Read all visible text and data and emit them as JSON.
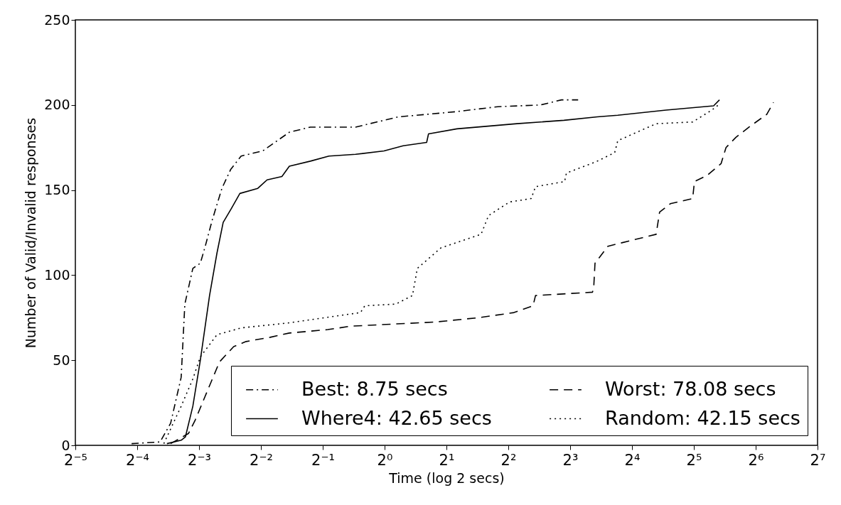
{
  "chart_data": {
    "type": "line",
    "xlabel": "Time (log 2 secs)",
    "ylabel": "Number of Valid/Invalid responses",
    "log": "x",
    "grid": false,
    "legend": "bottom right",
    "marker": "none",
    "xlim": [
      0.03125,
      128
    ],
    "ylim": [
      0,
      250
    ],
    "yticks": [
      0,
      50,
      100,
      150,
      200,
      250
    ],
    "xticks": [
      {
        "value": 0.03125,
        "label": "2⁻⁵"
      },
      {
        "value": 0.0625,
        "label": "2⁻⁴"
      },
      {
        "value": 0.125,
        "label": "2⁻³"
      },
      {
        "value": 0.25,
        "label": "2⁻²"
      },
      {
        "value": 0.5,
        "label": "2⁻¹"
      },
      {
        "value": 1,
        "label": "2⁰"
      },
      {
        "value": 2,
        "label": "2¹"
      },
      {
        "value": 4,
        "label": "2²"
      },
      {
        "value": 8,
        "label": "2³"
      },
      {
        "value": 16,
        "label": "2⁴"
      },
      {
        "value": 32,
        "label": "2⁵"
      },
      {
        "value": 64,
        "label": "2⁶"
      },
      {
        "value": 128,
        "label": "2⁷"
      }
    ],
    "series": [
      {
        "name": "Best: 8.75 secs",
        "color": "#000000",
        "line_style": "dashdot",
        "x": [
          0.0587,
          0.0808,
          0.0909,
          0.1023,
          0.1066,
          0.1166,
          0.1268,
          0.134,
          0.1446,
          0.1615,
          0.178,
          0.2003,
          0.2552,
          0.3439,
          0.4353,
          0.7221,
          1.1647,
          2.2038,
          3.5554,
          5.7358,
          7.2602,
          8.75
        ],
        "values": [
          1,
          2,
          13,
          40,
          83,
          104,
          107,
          117,
          132,
          151,
          162,
          170,
          173,
          184,
          187,
          187,
          193,
          196,
          199,
          200,
          203,
          203
        ]
      },
      {
        "name": "Where4: 42.65 secs",
        "color": "#000000",
        "line_style": "solid",
        "x": [
          0.0872,
          0.1023,
          0.1073,
          0.1166,
          0.1268,
          0.1406,
          0.1528,
          0.1638,
          0.1793,
          0.1975,
          0.2415,
          0.2679,
          0.3164,
          0.3439,
          0.4353,
          0.5359,
          0.7221,
          0.9931,
          1.2311,
          1.6021,
          1.6358,
          2.2501,
          4.4076,
          7.4643,
          10.853,
          13.64,
          23.43,
          39.95,
          42.65
        ],
        "values": [
          1,
          3,
          5,
          23,
          50,
          88,
          113,
          131,
          139,
          148,
          151,
          156,
          158,
          164,
          167,
          170,
          171,
          173,
          176,
          178,
          183,
          186,
          189,
          191,
          193,
          194,
          197,
          199.5,
          203
        ]
      },
      {
        "name": "Worst: 78.08 secs",
        "color": "#000000",
        "line_style": "dashed",
        "x": [
          0.0909,
          0.1111,
          0.1199,
          0.1571,
          0.1843,
          0.2117,
          0.2774,
          0.3439,
          0.5285,
          0.683,
          1.7777,
          2.8679,
          4.2574,
          5.278,
          5.4264,
          10.267,
          10.411,
          10.57,
          12.21,
          20.97,
          21.8,
          24.59,
          31.57,
          32.22,
          37.01,
          43.41,
          45.89,
          51.27,
          60.13,
          72.5,
          78.08
        ],
        "values": [
          1,
          7,
          15,
          49,
          58,
          61,
          63.5,
          66,
          68,
          70,
          72.5,
          75,
          78,
          82,
          88,
          90,
          92,
          107,
          117,
          124,
          137,
          142,
          145,
          155,
          158.5,
          165.5,
          175,
          181,
          187.5,
          194.5,
          201.5
        ]
      },
      {
        "name": "Random: 42.15 secs",
        "color": "#000000",
        "line_style": "dotted",
        "x": [
          0.0842,
          0.1023,
          0.1166,
          0.1268,
          0.1528,
          0.2003,
          0.3439,
          0.5105,
          0.7631,
          0.8011,
          1.1329,
          1.366,
          1.4439,
          1.879,
          2.9485,
          3.2043,
          4.0558,
          5.1694,
          5.4264,
          7.5162,
          7.6741,
          10.63,
          13.18,
          13.64,
          20.97,
          31.57,
          39.12,
          42.15
        ],
        "values": [
          1,
          23,
          39,
          52,
          65,
          69,
          72,
          75,
          78,
          82,
          83,
          88,
          104,
          116,
          124,
          135,
          143,
          145,
          152,
          155,
          160,
          166.5,
          172,
          179,
          189,
          190,
          197,
          200
        ]
      }
    ]
  }
}
